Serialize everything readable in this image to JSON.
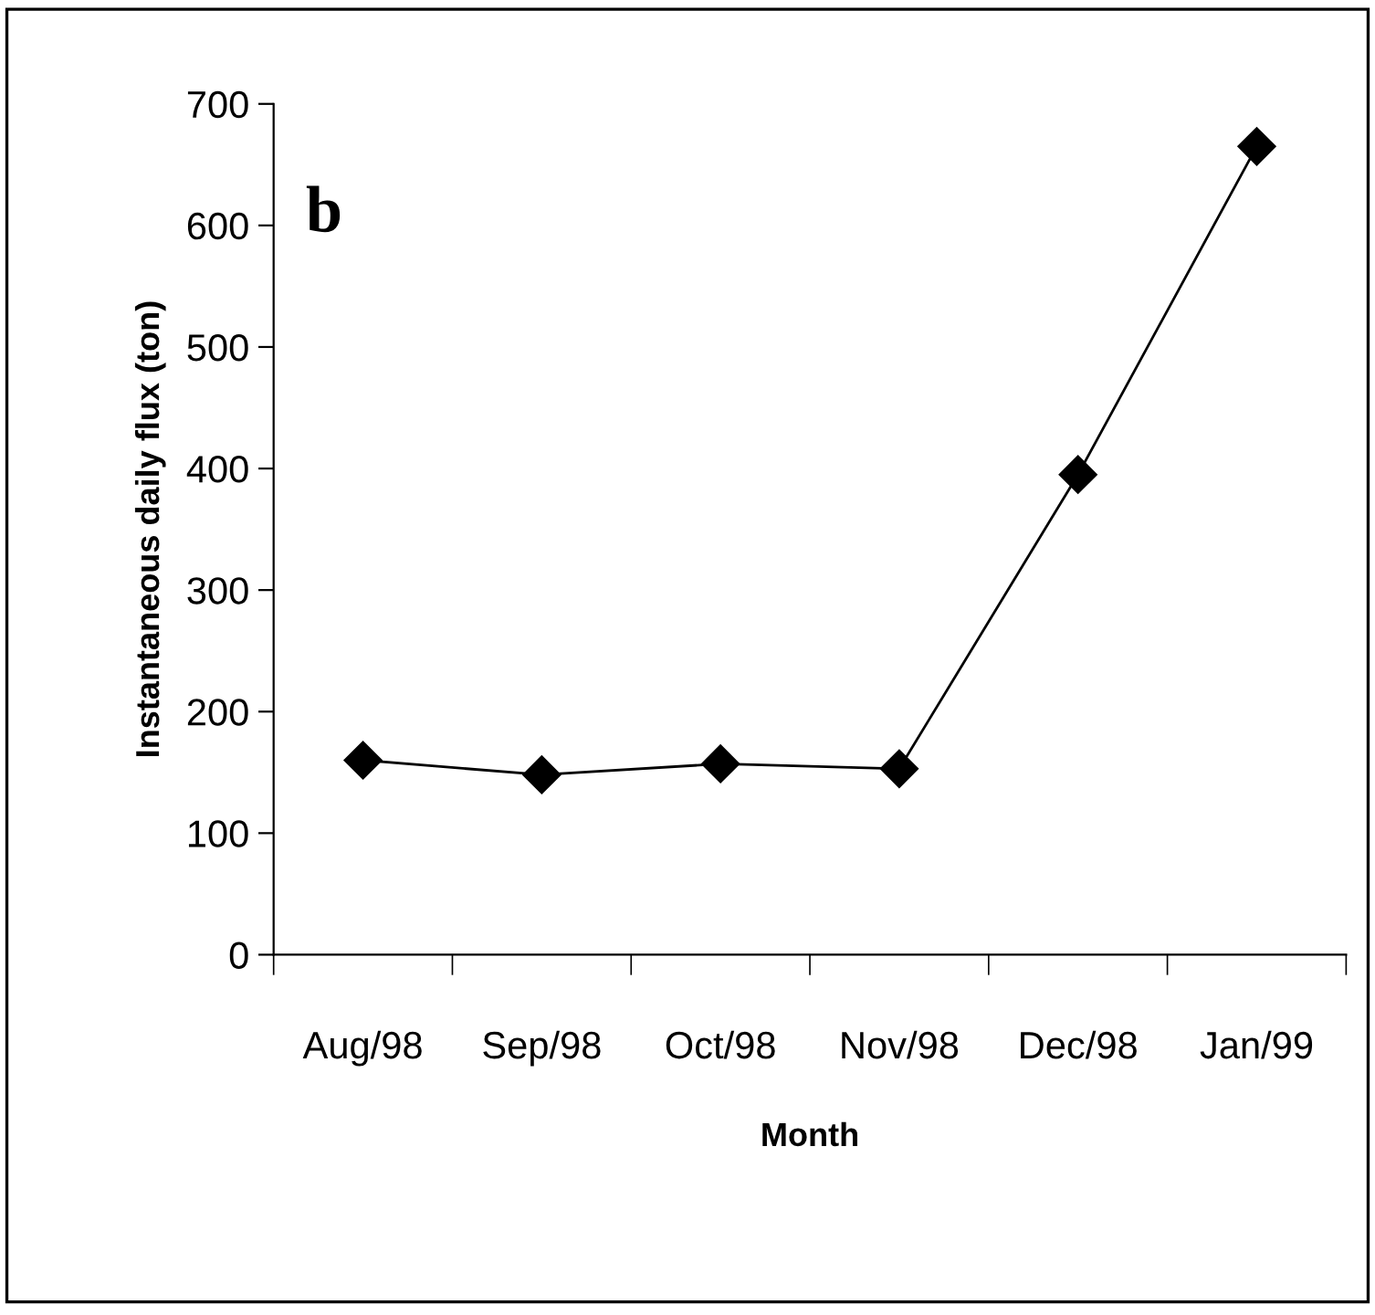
{
  "chart_data": {
    "type": "line",
    "xlabel": "Month",
    "ylabel": "Instantaneous daily flux (ton)",
    "categories": [
      "Aug/98",
      "Sep/98",
      "Oct/98",
      "Nov/98",
      "Dec/98",
      "Jan/99"
    ],
    "series": [
      {
        "color": "#000000",
        "values": [
          160,
          148,
          157,
          153,
          395,
          665
        ]
      }
    ],
    "ylim": [
      0,
      700
    ],
    "yticks": [
      0,
      100,
      200,
      300,
      400,
      500,
      600,
      700
    ],
    "grid": false,
    "legend": false,
    "marker": "diamond",
    "line_style": "solid",
    "annotations": [
      "b"
    ]
  }
}
